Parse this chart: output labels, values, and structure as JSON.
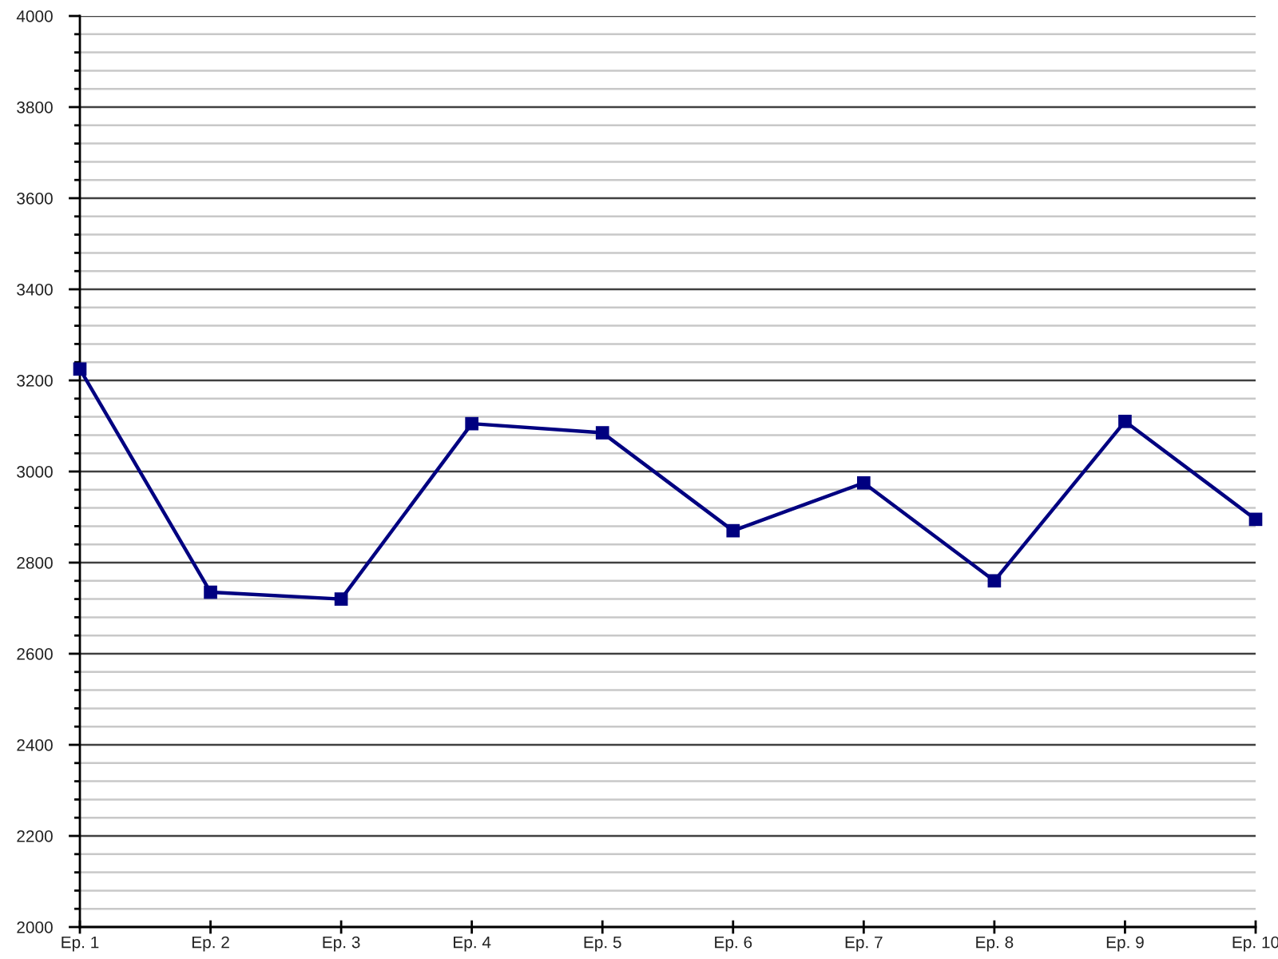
{
  "chart_data": {
    "type": "line",
    "categories": [
      "Ep. 1",
      "Ep. 2",
      "Ep. 3",
      "Ep. 4",
      "Ep. 5",
      "Ep. 6",
      "Ep. 7",
      "Ep. 8",
      "Ep. 9",
      "Ep. 10"
    ],
    "series": [
      {
        "color": "#000080",
        "values": [
          3225,
          2735,
          2720,
          3105,
          3085,
          2870,
          2975,
          2760,
          3110,
          2895
        ]
      }
    ],
    "ylim": [
      2000,
      4000
    ],
    "yticks": [
      2000,
      {
        "value": 2040,
        "label": null
      },
      {
        "value": 2080,
        "label": null
      },
      {
        "value": 2120,
        "label": null
      },
      {
        "value": 2160,
        "label": null
      },
      2200,
      {
        "value": 2240,
        "label": null
      },
      {
        "value": 2280,
        "label": null
      },
      {
        "value": 2320,
        "label": null
      },
      {
        "value": 2360,
        "label": null
      },
      2400,
      {
        "value": 2440,
        "label": null
      },
      {
        "value": 2480,
        "label": null
      },
      {
        "value": 2520,
        "label": null
      },
      {
        "value": 2560,
        "label": null
      },
      2600,
      {
        "value": 2640,
        "label": null
      },
      {
        "value": 2680,
        "label": null
      },
      {
        "value": 2720,
        "label": null
      },
      {
        "value": 2760,
        "label": null
      },
      2800,
      {
        "value": 2840,
        "label": null
      },
      {
        "value": 2880,
        "label": null
      },
      {
        "value": 2920,
        "label": null
      },
      {
        "value": 2960,
        "label": null
      },
      3000,
      {
        "value": 3040,
        "label": null
      },
      {
        "value": 3080,
        "label": null
      },
      {
        "value": 3120,
        "label": null
      },
      {
        "value": 3160,
        "label": null
      },
      3200,
      {
        "value": 3240,
        "label": null
      },
      {
        "value": 3280,
        "label": null
      },
      {
        "value": 3320,
        "label": null
      },
      {
        "value": 3360,
        "label": null
      },
      3400,
      {
        "value": 3440,
        "label": null
      },
      {
        "value": 3480,
        "label": null
      },
      {
        "value": 3520,
        "label": null
      },
      {
        "value": 3560,
        "label": null
      },
      3600,
      {
        "value": 3640,
        "label": null
      },
      {
        "value": 3680,
        "label": null
      },
      {
        "value": 3720,
        "label": null
      },
      {
        "value": 3760,
        "label": null
      },
      3800,
      {
        "value": 3840,
        "label": null
      },
      {
        "value": 3880,
        "label": null
      },
      {
        "value": 3920,
        "label": null
      },
      {
        "value": 3960,
        "label": null
      },
      4000
    ],
    "grid": "y",
    "marker": "square",
    "line_style": "solid"
  }
}
